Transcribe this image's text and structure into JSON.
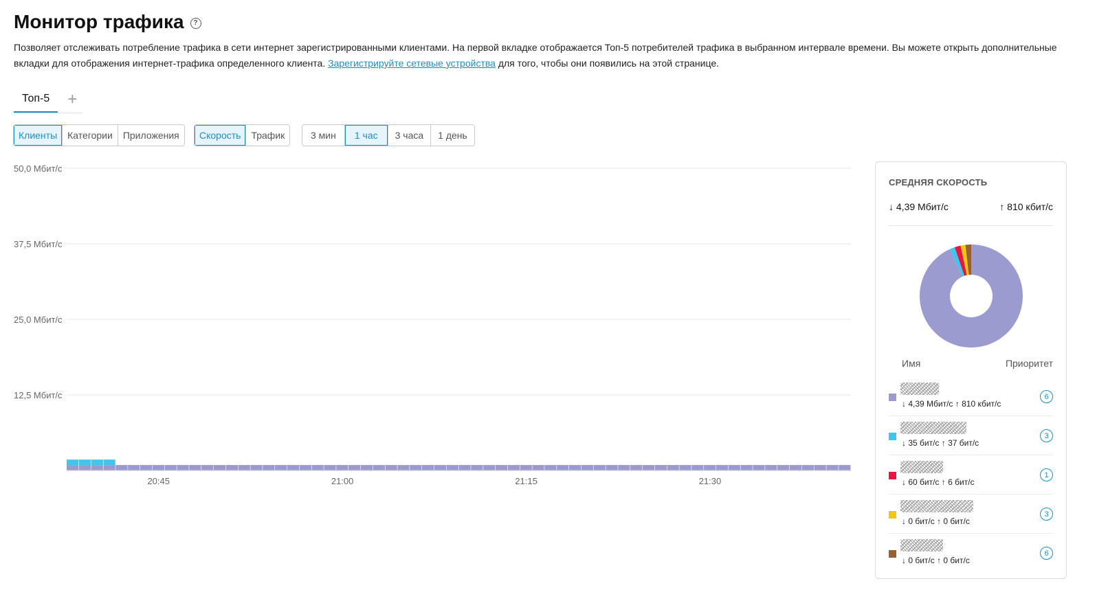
{
  "page": {
    "title": "Монитор трафика",
    "description_before_link": "Позволяет отслеживать потребление трафика в сети интернет зарегистрированными клиентами. На первой вкладке отображается Топ-5 потребителей трафика в выбранном интервале времени. Вы можете открыть дополнительные вкладки для отображения интернет-трафика определенного клиента. ",
    "description_link": "Зарегистрируйте сетевые устройства",
    "description_after_link": " для того, чтобы они появились на этой странице."
  },
  "tabs": [
    {
      "label": "Топ-5",
      "active": true
    }
  ],
  "tab_add_label": "+",
  "group_by": [
    {
      "label": "Клиенты",
      "active": true
    },
    {
      "label": "Категории",
      "active": false
    },
    {
      "label": "Приложения",
      "active": false
    }
  ],
  "metric": [
    {
      "label": "Скорость",
      "active": true
    },
    {
      "label": "Трафик",
      "active": false
    }
  ],
  "interval": [
    {
      "label": "3 мин",
      "active": false
    },
    {
      "label": "1 час",
      "active": true
    },
    {
      "label": "3 часа",
      "active": false
    },
    {
      "label": "1 день",
      "active": false
    }
  ],
  "colors": {
    "accent": "#1a8fc4",
    "client1": "#9b9bcf",
    "client2": "#3fc6ef",
    "client3": "#e8163c",
    "client4": "#f4c518",
    "client5": "#9a6130"
  },
  "chart_data": {
    "type": "bar",
    "stacked": true,
    "ylim": [
      0,
      50
    ],
    "y_ticks": [
      12.5,
      25,
      37.5,
      50
    ],
    "y_tick_labels": [
      "12,5 Мбит/с",
      "25,0 Мбит/с",
      "37,5 Мбит/с",
      "50,0 Мбит/с"
    ],
    "x_tick_labels": [
      {
        "label": "20:45",
        "at_bar": 7.5
      },
      {
        "label": "21:00",
        "at_bar": 22.5
      },
      {
        "label": "21:15",
        "at_bar": 37.5
      },
      {
        "label": "21:30",
        "at_bar": 52.5
      }
    ],
    "grid": true,
    "series": [
      {
        "color": "#9b9bcf",
        "values": [
          0.9,
          0.9,
          0.9,
          0.9,
          0.9,
          0.9,
          0.9,
          0.9,
          0.9,
          0.9,
          0.9,
          0.9,
          0.9,
          0.9,
          0.9,
          0.9,
          0.9,
          0.9,
          0.9,
          0.9,
          0.9,
          0.9,
          0.9,
          0.9,
          0.9,
          0.9,
          0.9,
          0.9,
          0.9,
          0.9,
          0.9,
          0.9,
          0.9,
          0.9,
          0.9,
          0.9,
          0.9,
          0.9,
          0.9,
          0.9,
          0.9,
          0.9,
          0.9,
          0.9,
          0.9,
          0.9,
          0.9,
          0.9,
          0.9,
          0.9,
          0.9,
          0.9,
          0.9,
          0.9,
          0.9,
          0.9,
          0.9,
          0.9,
          0.9,
          0.9,
          0.9,
          0.9,
          0.9,
          0.9
        ]
      },
      {
        "color": "#3fc6ef",
        "values": [
          0.9,
          0.9,
          0.9,
          0.9,
          0,
          0,
          0,
          0,
          0,
          0,
          0,
          0,
          0,
          0,
          0,
          0,
          0,
          0,
          0,
          0,
          0,
          0,
          0,
          0,
          0,
          0,
          0,
          0,
          0,
          0,
          0,
          0,
          0,
          0,
          0,
          0,
          0,
          0,
          0,
          0,
          0,
          0,
          0,
          0,
          0,
          0,
          0,
          0,
          0,
          0,
          0,
          0,
          0,
          0,
          0,
          0,
          0,
          0,
          0,
          0,
          0,
          0,
          0,
          0
        ]
      },
      {
        "color": "#e8163c",
        "values": [
          0,
          0,
          0,
          0,
          0,
          0,
          0,
          0,
          0,
          0,
          0,
          0,
          0,
          0,
          0,
          0,
          0,
          0,
          0,
          0,
          0,
          0,
          0,
          0,
          0,
          0,
          0,
          0,
          0,
          0,
          0,
          0,
          0,
          0,
          0,
          0,
          0,
          0,
          0,
          0,
          0,
          0,
          0,
          0,
          0,
          0,
          0,
          0,
          0,
          0,
          0,
          0,
          0,
          0,
          0,
          0,
          0,
          0,
          0,
          0,
          0,
          0,
          0,
          0
        ]
      }
    ]
  },
  "summary": {
    "title": "СРЕДНЯЯ СКОРОСТЬ",
    "down": "↓ 4,39 Мбит/с",
    "up": "↑ 810 кбит/с",
    "col_name": "Имя",
    "col_priority": "Приоритет"
  },
  "donut": [
    {
      "color": "#9b9bcf",
      "value": 93.2
    },
    {
      "color": "#3fc6ef",
      "value": 1.6
    },
    {
      "color": "#e8163c",
      "value": 1.9
    },
    {
      "color": "#f4c518",
      "value": 1.5
    },
    {
      "color": "#9a6130",
      "value": 1.8
    }
  ],
  "clients": [
    {
      "color": "#9b9bcf",
      "rates": "↓ 4,39 Мбит/с  ↑ 810 кбит/с",
      "priority": "6",
      "name_width": 56
    },
    {
      "color": "#3fc6ef",
      "rates": "↓ 35 бит/с  ↑ 37 бит/с",
      "priority": "3",
      "name_width": 96
    },
    {
      "color": "#e8163c",
      "rates": "↓ 60 бит/с  ↑ 6 бит/с",
      "priority": "1",
      "name_width": 62
    },
    {
      "color": "#f4c518",
      "rates": "↓ 0 бит/с  ↑ 0 бит/с",
      "priority": "3",
      "name_width": 106
    },
    {
      "color": "#9a6130",
      "rates": "↓ 0 бит/с  ↑ 0 бит/с",
      "priority": "6",
      "name_width": 62
    }
  ]
}
